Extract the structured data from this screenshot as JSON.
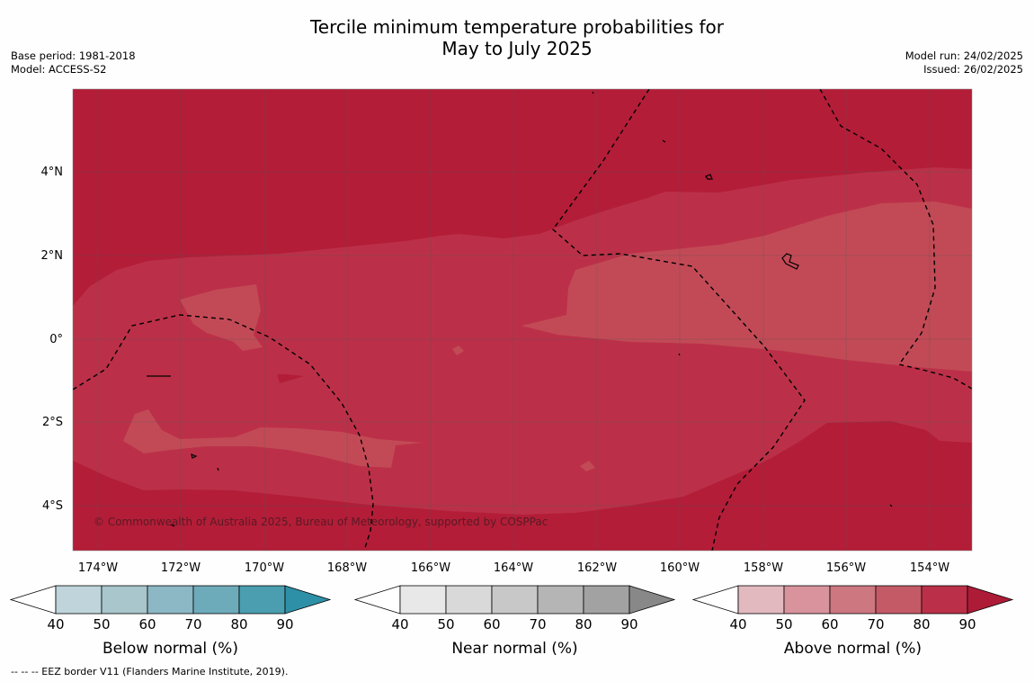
{
  "title": {
    "line1": "Tercile minimum temperature probabilities for",
    "line2": "May to July 2025"
  },
  "meta_left": {
    "base_period": "Base period: 1981-2018",
    "model": "Model: ACCESS-S2"
  },
  "meta_right": {
    "model_run": "Model run: 24/02/2025",
    "issued": "Issued: 26/02/2025"
  },
  "map": {
    "copyright": "© Commonwealth of Australia 2025, Bureau of Meteorology, supported by COSPPac",
    "lat_labels": [
      "4°N",
      "2°N",
      "0°",
      "2°S",
      "4°S"
    ],
    "lon_labels": [
      "174°W",
      "172°W",
      "170°W",
      "168°W",
      "166°W",
      "164°W",
      "162°W",
      "160°W",
      "158°W",
      "156°W",
      "154°W"
    ],
    "colors": {
      "above_90": "#b31d38",
      "above_80": "#bb3048",
      "above_70": "#c24a56",
      "grid": "#555555",
      "eez_line": "#000000"
    }
  },
  "colorbars": [
    {
      "title": "Below normal (%)",
      "ticks": [
        "40",
        "50",
        "60",
        "70",
        "80",
        "90"
      ],
      "colors": [
        "#ffffff",
        "#bfd4db",
        "#a8c6cc",
        "#8cb7c4",
        "#6dabba",
        "#4a9eb0",
        "#2e90a6"
      ]
    },
    {
      "title": "Near normal (%)",
      "ticks": [
        "40",
        "50",
        "60",
        "70",
        "80",
        "90"
      ],
      "colors": [
        "#ffffff",
        "#e8e8e8",
        "#d9d9d9",
        "#c8c8c8",
        "#b5b5b5",
        "#a2a2a2",
        "#888888"
      ]
    },
    {
      "title": "Above normal (%)",
      "ticks": [
        "40",
        "50",
        "60",
        "70",
        "80",
        "90"
      ],
      "colors": [
        "#ffffff",
        "#e3b9c0",
        "#d8939d",
        "#cd7780",
        "#c45a66",
        "#bb3048",
        "#ae1b36"
      ]
    }
  ],
  "footer": "--  --  -- EEZ border V11 (Flanders Marine Institute, 2019)."
}
